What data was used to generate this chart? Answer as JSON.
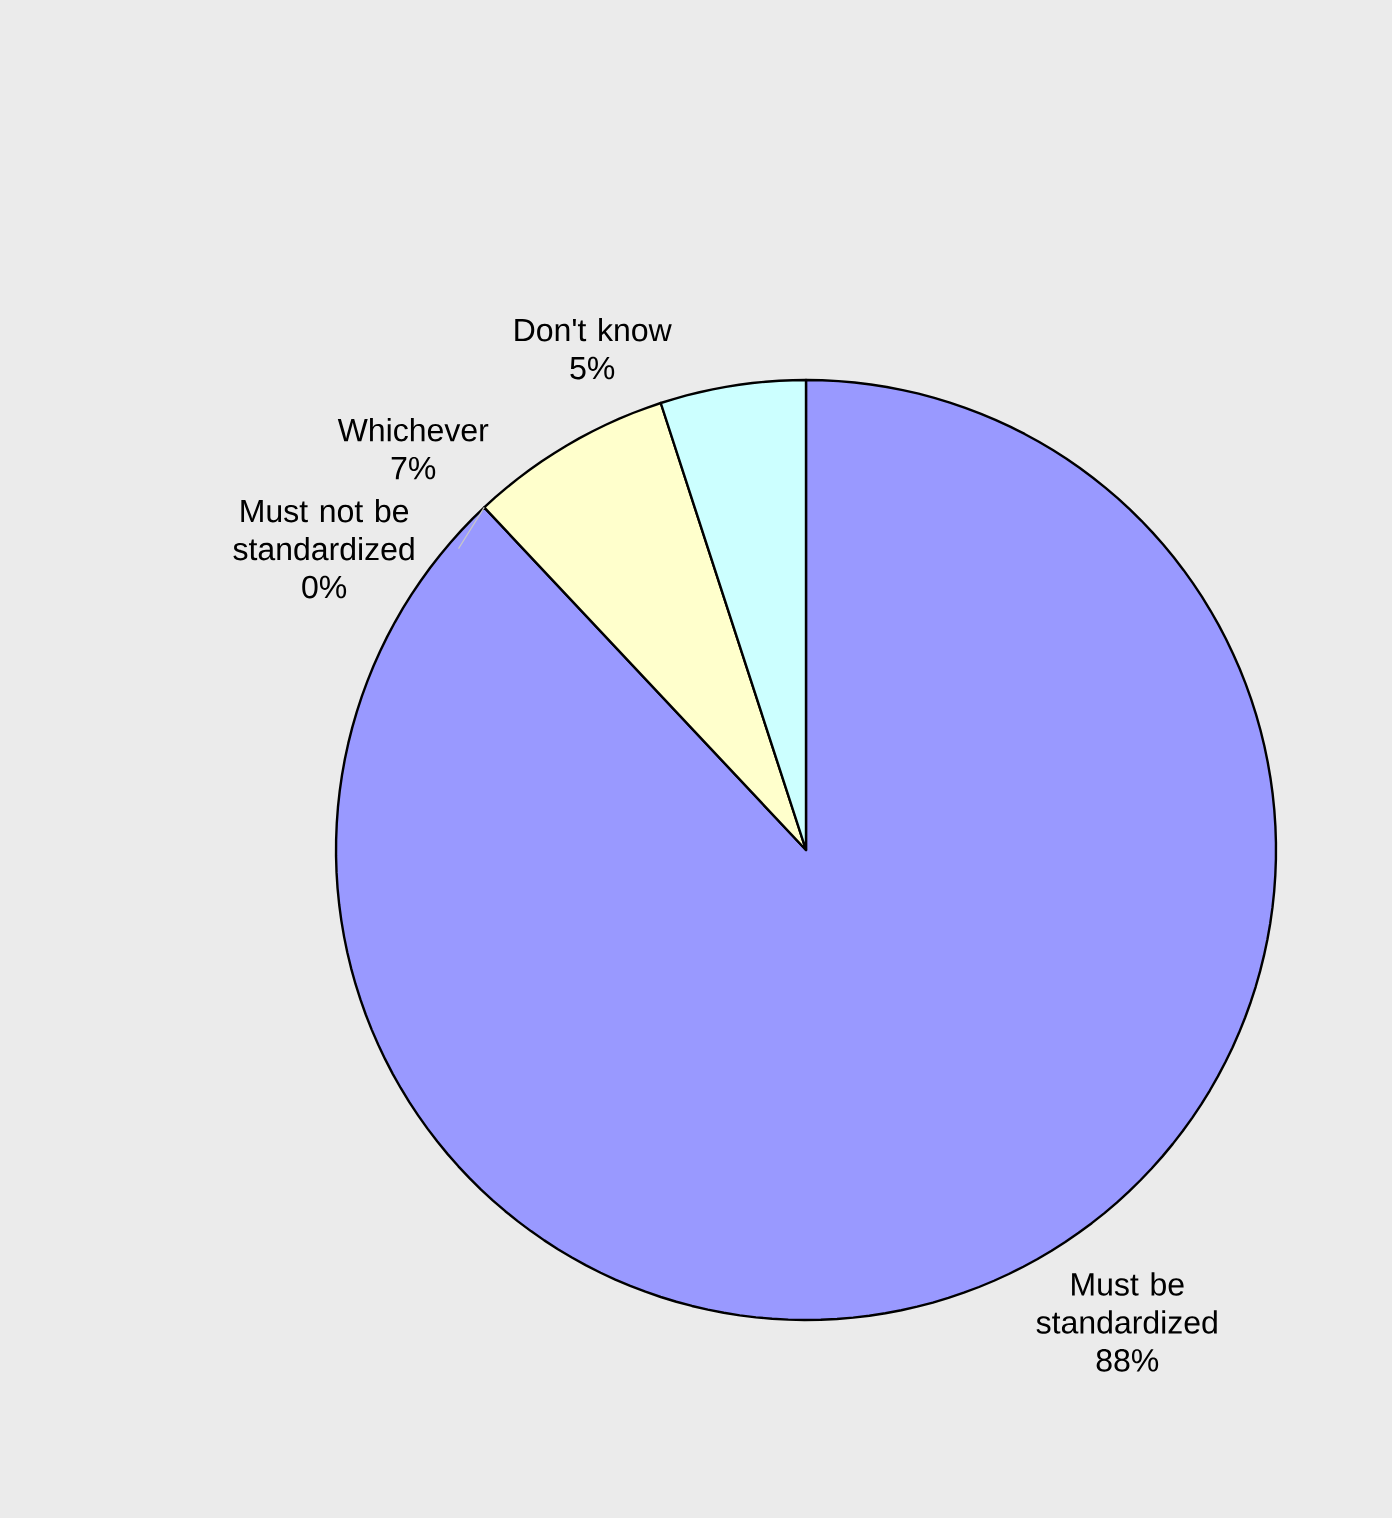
{
  "chart_data": {
    "type": "pie",
    "categories": [
      "Must be standardized",
      "Must not be standardized",
      "Whichever",
      "Don't know"
    ],
    "values": [
      88,
      0,
      7,
      5
    ],
    "value_labels": [
      "88%",
      "0%",
      "7%",
      "5%"
    ],
    "colors": [
      "#9999ff",
      "#993366",
      "#ffffcc",
      "#ccffff"
    ]
  }
}
